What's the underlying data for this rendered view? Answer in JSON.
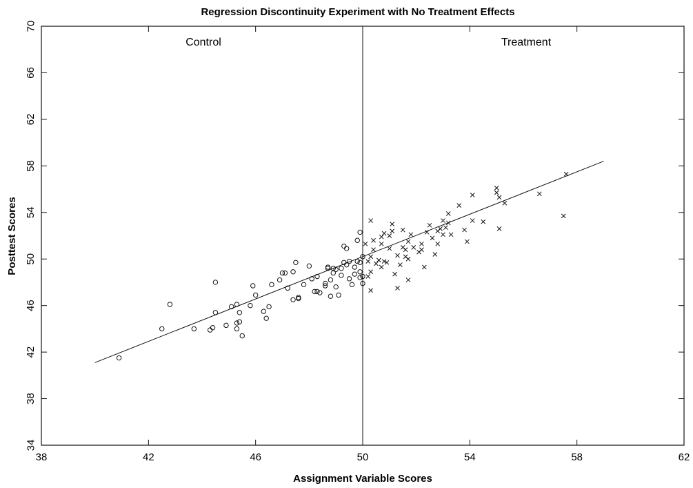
{
  "chart_data": {
    "type": "scatter",
    "title": "Regression Discontinuity Experiment with No Treatment Effects",
    "xlabel": "Assignment Variable Scores",
    "ylabel": "Posttest Scores",
    "xlim": [
      38,
      62
    ],
    "ylim": [
      34,
      70
    ],
    "x_ticks": [
      "38",
      "42",
      "46",
      "50",
      "54",
      "58",
      "62"
    ],
    "y_ticks": [
      "34",
      "38",
      "42",
      "46",
      "50",
      "54",
      "58",
      "62",
      "66",
      "70"
    ],
    "cutoff": 50,
    "grid": false,
    "region_labels": {
      "left": "Control",
      "right": "Treatment"
    },
    "regression_line": {
      "x": [
        40.0,
        59.0
      ],
      "y": [
        41.1,
        58.4
      ]
    },
    "series": [
      {
        "marker": "o",
        "points": [
          [
            40.9,
            41.5
          ],
          [
            42.5,
            44.0
          ],
          [
            42.8,
            46.1
          ],
          [
            43.7,
            44.0
          ],
          [
            44.3,
            43.9
          ],
          [
            44.4,
            44.1
          ],
          [
            44.5,
            45.4
          ],
          [
            44.5,
            48.0
          ],
          [
            44.9,
            44.3
          ],
          [
            45.1,
            45.9
          ],
          [
            45.3,
            46.1
          ],
          [
            45.3,
            44.5
          ],
          [
            45.3,
            44.0
          ],
          [
            45.4,
            44.6
          ],
          [
            45.4,
            45.4
          ],
          [
            45.5,
            43.4
          ],
          [
            45.8,
            46.0
          ],
          [
            45.9,
            47.7
          ],
          [
            46.0,
            46.9
          ],
          [
            46.3,
            45.5
          ],
          [
            46.4,
            44.9
          ],
          [
            46.5,
            45.9
          ],
          [
            46.6,
            47.8
          ],
          [
            46.9,
            48.2
          ],
          [
            47.0,
            48.8
          ],
          [
            47.1,
            48.8
          ],
          [
            47.2,
            47.5
          ],
          [
            47.4,
            46.5
          ],
          [
            47.4,
            48.9
          ],
          [
            47.5,
            49.7
          ],
          [
            47.6,
            46.6
          ],
          [
            47.6,
            46.7
          ],
          [
            47.8,
            47.8
          ],
          [
            48.0,
            49.4
          ],
          [
            48.1,
            48.3
          ],
          [
            48.2,
            47.2
          ],
          [
            48.3,
            48.5
          ],
          [
            48.3,
            47.2
          ],
          [
            48.4,
            47.1
          ],
          [
            48.6,
            47.7
          ],
          [
            48.6,
            47.9
          ],
          [
            48.7,
            49.3
          ],
          [
            48.7,
            49.2
          ],
          [
            48.8,
            48.2
          ],
          [
            48.8,
            46.8
          ],
          [
            48.9,
            48.8
          ],
          [
            48.9,
            49.2
          ],
          [
            49.0,
            47.6
          ],
          [
            49.0,
            49.1
          ],
          [
            49.1,
            46.9
          ],
          [
            49.2,
            48.6
          ],
          [
            49.2,
            49.2
          ],
          [
            49.3,
            49.7
          ],
          [
            49.3,
            51.1
          ],
          [
            49.4,
            49.5
          ],
          [
            49.4,
            50.9
          ],
          [
            49.5,
            49.8
          ],
          [
            49.5,
            48.3
          ],
          [
            49.6,
            47.8
          ],
          [
            49.7,
            49.3
          ],
          [
            49.7,
            48.7
          ],
          [
            49.8,
            51.6
          ],
          [
            49.8,
            49.8
          ],
          [
            49.9,
            48.4
          ],
          [
            49.9,
            48.9
          ],
          [
            49.9,
            49.7
          ],
          [
            49.9,
            52.3
          ],
          [
            50.0,
            50.2
          ],
          [
            50.0,
            48.5
          ],
          [
            50.0,
            47.9
          ]
        ]
      },
      {
        "marker": "x",
        "points": [
          [
            50.1,
            51.3
          ],
          [
            50.2,
            48.5
          ],
          [
            50.2,
            49.8
          ],
          [
            50.3,
            47.3
          ],
          [
            50.3,
            50.2
          ],
          [
            50.3,
            53.3
          ],
          [
            50.3,
            48.9
          ],
          [
            50.4,
            51.6
          ],
          [
            50.4,
            50.8
          ],
          [
            50.5,
            49.6
          ],
          [
            50.6,
            49.9
          ],
          [
            50.7,
            49.3
          ],
          [
            50.7,
            51.9
          ],
          [
            50.7,
            51.3
          ],
          [
            50.8,
            52.2
          ],
          [
            50.8,
            49.8
          ],
          [
            50.9,
            49.7
          ],
          [
            51.0,
            50.9
          ],
          [
            51.0,
            52.0
          ],
          [
            51.1,
            53.0
          ],
          [
            51.1,
            52.4
          ],
          [
            51.2,
            48.7
          ],
          [
            51.3,
            47.5
          ],
          [
            51.3,
            50.3
          ],
          [
            51.4,
            49.5
          ],
          [
            51.5,
            51.0
          ],
          [
            51.5,
            52.5
          ],
          [
            51.6,
            50.2
          ],
          [
            51.6,
            50.8
          ],
          [
            51.7,
            51.5
          ],
          [
            51.7,
            48.2
          ],
          [
            51.7,
            50.0
          ],
          [
            51.8,
            52.1
          ],
          [
            51.9,
            51.0
          ],
          [
            52.1,
            50.6
          ],
          [
            52.2,
            51.3
          ],
          [
            52.2,
            50.8
          ],
          [
            52.3,
            49.3
          ],
          [
            52.4,
            52.3
          ],
          [
            52.5,
            52.9
          ],
          [
            52.6,
            51.8
          ],
          [
            52.7,
            50.4
          ],
          [
            52.8,
            52.4
          ],
          [
            52.8,
            51.3
          ],
          [
            52.9,
            52.6
          ],
          [
            53.0,
            53.3
          ],
          [
            53.0,
            52.1
          ],
          [
            53.1,
            52.7
          ],
          [
            53.2,
            53.1
          ],
          [
            53.3,
            52.1
          ],
          [
            53.2,
            53.9
          ],
          [
            53.6,
            54.6
          ],
          [
            53.8,
            52.5
          ],
          [
            53.9,
            51.5
          ],
          [
            54.1,
            55.5
          ],
          [
            54.1,
            53.3
          ],
          [
            54.5,
            53.2
          ],
          [
            55.0,
            56.1
          ],
          [
            55.0,
            55.7
          ],
          [
            55.1,
            55.3
          ],
          [
            55.1,
            52.6
          ],
          [
            55.3,
            54.8
          ],
          [
            56.6,
            55.6
          ],
          [
            57.5,
            53.7
          ],
          [
            57.6,
            57.3
          ]
        ]
      }
    ]
  }
}
